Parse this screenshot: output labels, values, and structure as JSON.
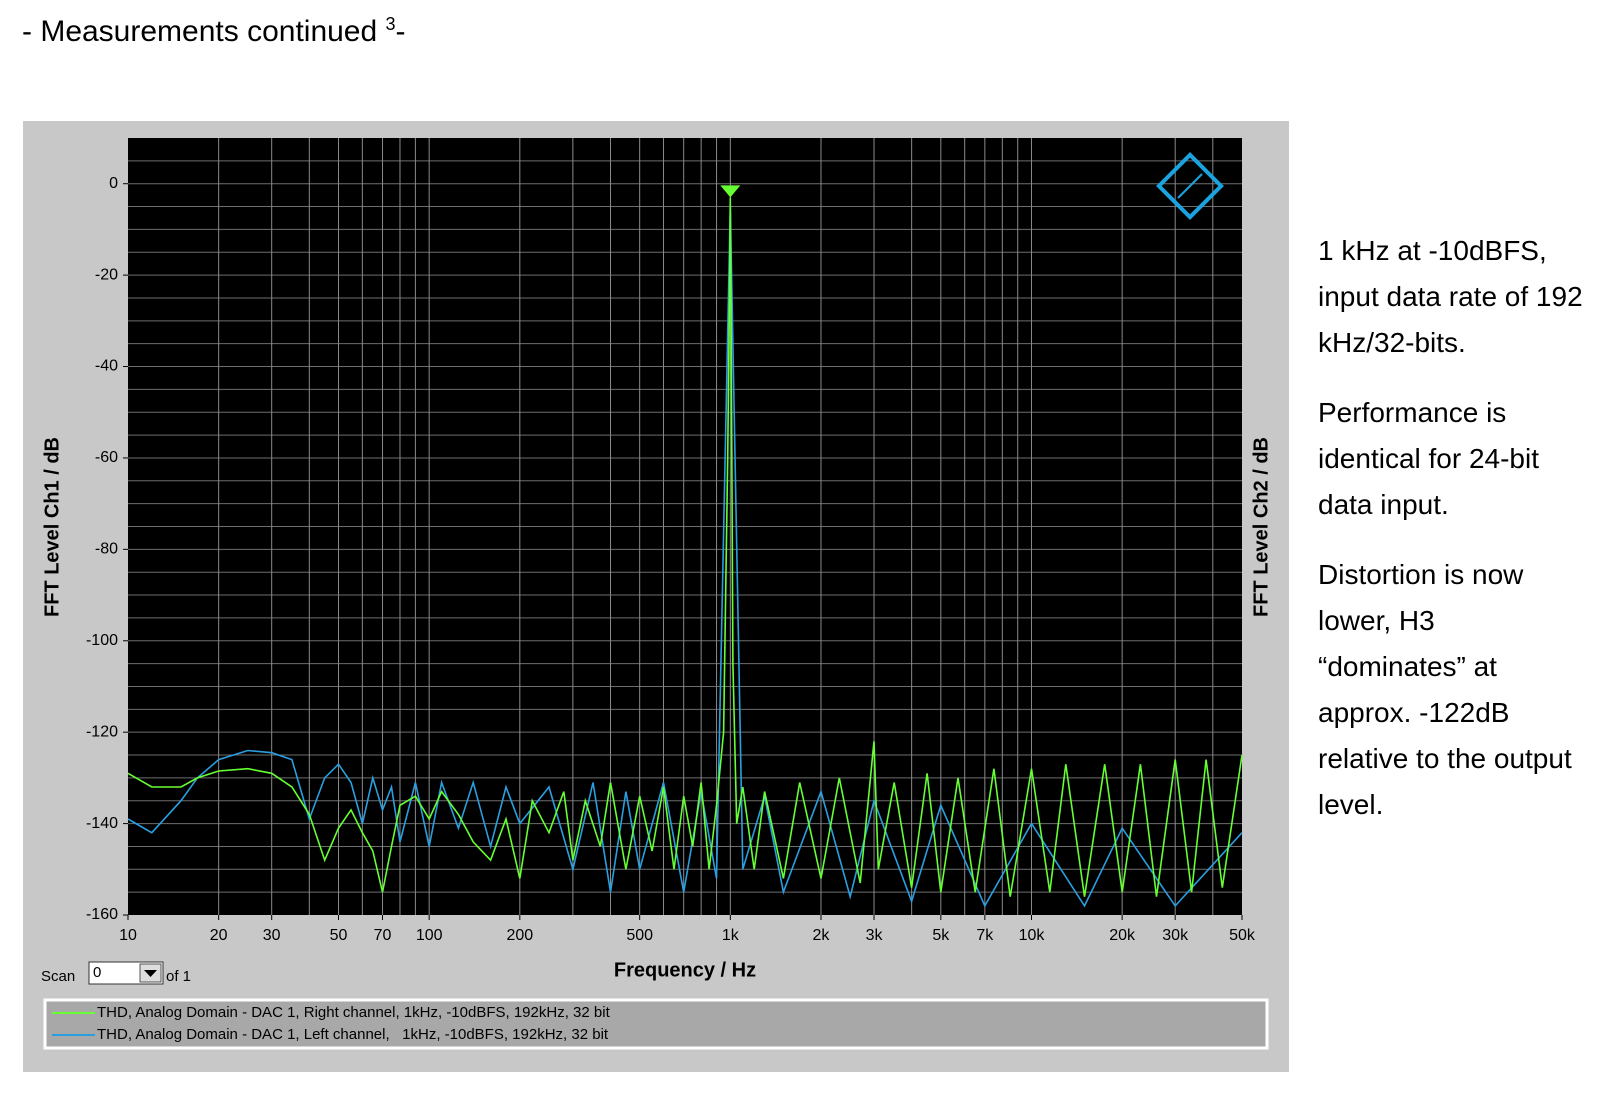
{
  "heading": [
    "- Measurements continued ",
    "3",
    "-"
  ],
  "side_text": [
    "1 kHz at -10dBFS, input data rate of 192 kHz/32-bits.",
    "Performance is identical for 24-bit data input.",
    "Distortion is now lower, H3 “dominates” at approx.  -122dB relative to the output level."
  ],
  "chart_data": {
    "type": "line",
    "xlabel": "Frequency / Hz",
    "ylabel": "FFT Level Ch1 / dB",
    "y2label": "FFT Level Ch2 / dB",
    "log_x": true,
    "grid": true,
    "xlim": [
      10,
      50000
    ],
    "ylim": [
      -160,
      10
    ],
    "yticks": [
      0,
      -20,
      -40,
      -60,
      -80,
      -100,
      -120,
      -140,
      -160
    ],
    "ygrid": [
      5,
      0,
      -5,
      -10,
      -15,
      -20,
      -25,
      -30,
      -35,
      -40,
      -45,
      -50,
      -55,
      -60,
      -65,
      -70,
      -75,
      -80,
      -85,
      -90,
      -95,
      -100,
      -105,
      -110,
      -115,
      -120,
      -125,
      -130,
      -135,
      -140,
      -145,
      -150,
      -155
    ],
    "xticks": [
      10,
      20,
      30,
      50,
      70,
      100,
      200,
      500,
      {
        "value": 1000,
        "label": "1k"
      },
      {
        "value": 2000,
        "label": "2k"
      },
      {
        "value": 3000,
        "label": "3k"
      },
      {
        "value": 5000,
        "label": "5k"
      },
      {
        "value": 7000,
        "label": "7k"
      },
      {
        "value": 10000,
        "label": "10k"
      },
      {
        "value": 20000,
        "label": "20k"
      },
      {
        "value": 30000,
        "label": "30k"
      },
      {
        "value": 50000,
        "label": "50k"
      }
    ],
    "xgrid": [
      20,
      30,
      40,
      50,
      60,
      70,
      80,
      90,
      100,
      200,
      300,
      400,
      500,
      600,
      700,
      800,
      900,
      1000,
      2000,
      3000,
      4000,
      5000,
      6000,
      7000,
      8000,
      9000,
      10000,
      20000,
      30000,
      40000
    ],
    "scan_label": "Scan",
    "scan_value": "0",
    "scan_of": "of 1",
    "series": [
      {
        "name": "THD, Analog Domain - DAC 1, Left channel,   1kHz, -10dBFS, 192kHz, 32 bit",
        "color": "#2a9fe0",
        "x": [
          10,
          12,
          15,
          17,
          20,
          25,
          30,
          35,
          40,
          45,
          50,
          55,
          60,
          65,
          70,
          75,
          80,
          90,
          100,
          110,
          125,
          140,
          160,
          180,
          200,
          250,
          300,
          350,
          400,
          450,
          500,
          600,
          700,
          800,
          900,
          1000,
          1100,
          1300,
          1500,
          2000,
          2500,
          3000,
          4000,
          5000,
          7000,
          10000,
          15000,
          20000,
          30000,
          50000
        ],
        "values": [
          -139,
          -142,
          -135,
          -130,
          -126,
          -124,
          -124.5,
          -126,
          -139,
          -130,
          -127,
          -131,
          -140,
          -130,
          -137,
          -132,
          -144,
          -131,
          -145,
          -131,
          -141,
          -131,
          -145,
          -132,
          -140,
          -132,
          -150,
          -131,
          -155,
          -133,
          -150,
          -131,
          -155,
          -133,
          -152,
          -5,
          -150,
          -134,
          -155,
          -133,
          -156,
          -135,
          -157,
          -136,
          -158,
          -140,
          -158,
          -141,
          -158,
          -142
        ]
      },
      {
        "name": "THD, Analog Domain - DAC 1, Right channel, 1kHz, -10dBFS, 192kHz, 32 bit",
        "color": "#66ff33",
        "x": [
          10,
          12,
          15,
          17,
          20,
          25,
          30,
          35,
          40,
          45,
          50,
          55,
          60,
          65,
          70,
          75,
          80,
          90,
          100,
          110,
          125,
          140,
          160,
          180,
          200,
          220,
          250,
          280,
          300,
          330,
          370,
          400,
          450,
          500,
          550,
          600,
          650,
          700,
          750,
          800,
          850,
          900,
          950,
          980,
          995,
          1000,
          1005,
          1020,
          1050,
          1100,
          1200,
          1300,
          1500,
          1700,
          2000,
          2300,
          2700,
          3000,
          3100,
          3500,
          4000,
          4500,
          5000,
          5700,
          6500,
          7500,
          8500,
          10000,
          11500,
          13000,
          15000,
          17500,
          20000,
          23000,
          26000,
          30000,
          34000,
          38000,
          43000,
          50000
        ],
        "values": [
          -129,
          -132,
          -132,
          -130,
          -128.5,
          -128,
          -129,
          -132,
          -138,
          -148,
          -141,
          -137,
          -142,
          -146,
          -155,
          -145,
          -136,
          -134,
          -139,
          -133,
          -138,
          -144,
          -148,
          -139,
          -152,
          -135,
          -142,
          -133,
          -148,
          -135,
          -145,
          -131,
          -150,
          -134,
          -146,
          -132,
          -150,
          -134,
          -145,
          -131,
          -150,
          -136,
          -120,
          -60,
          -20,
          -3,
          -25,
          -105,
          -140,
          -132,
          -150,
          -133,
          -152,
          -131,
          -152,
          -130,
          -153,
          -122,
          -150,
          -131,
          -154,
          -129,
          -155,
          -130,
          -155,
          -128,
          -156,
          -128,
          -155,
          -127,
          -156,
          -127,
          -155,
          -127,
          -156,
          -126,
          -155,
          -126,
          -154,
          -125
        ]
      }
    ]
  }
}
